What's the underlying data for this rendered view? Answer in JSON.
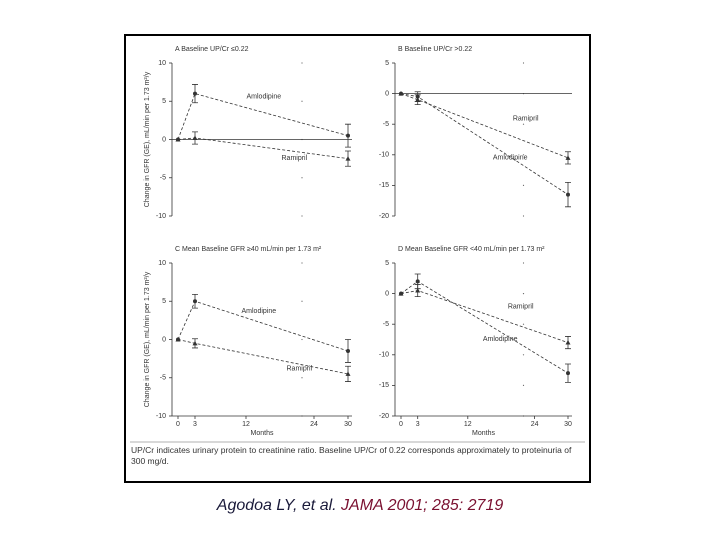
{
  "chart_data": [
    {
      "type": "line",
      "title": "A  Baseline UP/Cr ≤0.22",
      "ylabel": "Change in GFR (GE), mL/min per 1.73 m²/y",
      "x": [
        0,
        3,
        30
      ],
      "xlim": [
        0,
        30
      ],
      "ylim": [
        -10,
        10
      ],
      "yticks": [
        10,
        5,
        0,
        -5,
        -10
      ],
      "zero_line": true,
      "series": [
        {
          "name": "Amlodipine",
          "color": "#333333",
          "marker": "circle",
          "values": [
            0,
            6,
            0.5
          ],
          "errors": [
            0,
            1.2,
            1.5
          ]
        },
        {
          "name": "Ramipril",
          "color": "#333333",
          "marker": "triangle",
          "values": [
            0,
            0.2,
            -2.5
          ],
          "errors": [
            0,
            0.8,
            1
          ]
        }
      ]
    },
    {
      "type": "line",
      "title": "B  Baseline UP/Cr >0.22",
      "x": [
        0,
        3,
        30
      ],
      "xlim": [
        0,
        30
      ],
      "ylim": [
        -20,
        5
      ],
      "yticks": [
        5,
        0,
        -5,
        -10,
        -15,
        -20
      ],
      "zero_line": true,
      "series": [
        {
          "name": "Amlodipine",
          "color": "#333333",
          "marker": "circle",
          "values": [
            0,
            -0.5,
            -16.5
          ],
          "errors": [
            0,
            0.8,
            2
          ]
        },
        {
          "name": "Ramipril",
          "color": "#333333",
          "marker": "triangle",
          "values": [
            0,
            -1,
            -10.5
          ],
          "errors": [
            0,
            0.8,
            1
          ]
        }
      ]
    },
    {
      "type": "line",
      "title": "C  Mean Baseline GFR ≥40 mL/min per 1.73 m²",
      "ylabel": "Change in GFR (GE), mL/min per 1.73 m²/y",
      "xlabel": "Months",
      "x": [
        0,
        3,
        30
      ],
      "xlim": [
        0,
        30
      ],
      "xticks": [
        0,
        3,
        12,
        24,
        30
      ],
      "ylim": [
        -10,
        10
      ],
      "yticks": [
        10,
        5,
        0,
        -5,
        -10
      ],
      "zero_line": false,
      "series": [
        {
          "name": "Amlodipine",
          "color": "#333333",
          "marker": "circle",
          "values": [
            0,
            5,
            -1.5
          ],
          "errors": [
            0,
            0.9,
            1.5
          ]
        },
        {
          "name": "Ramipril",
          "color": "#333333",
          "marker": "triangle",
          "values": [
            0,
            -0.5,
            -4.5
          ],
          "errors": [
            0,
            0.6,
            1
          ]
        }
      ]
    },
    {
      "type": "line",
      "title": "D  Mean Baseline GFR <40 mL/min per 1.73 m²",
      "xlabel": "Months",
      "x": [
        0,
        3,
        30
      ],
      "xlim": [
        0,
        30
      ],
      "xticks": [
        0,
        3,
        12,
        24,
        30
      ],
      "ylim": [
        -20,
        5
      ],
      "yticks": [
        5,
        0,
        -5,
        -10,
        -15,
        -20
      ],
      "zero_line": false,
      "series": [
        {
          "name": "Amlodipine",
          "color": "#333333",
          "marker": "circle",
          "values": [
            0,
            2,
            -13
          ],
          "errors": [
            0,
            1.2,
            1.5
          ]
        },
        {
          "name": "Ramipril",
          "color": "#333333",
          "marker": "triangle",
          "values": [
            0,
            0.5,
            -8
          ],
          "errors": [
            0,
            1,
            1
          ]
        }
      ]
    }
  ],
  "caption": "UP/Cr indicates urinary protein to creatinine ratio. Baseline UP/Cr of 0.22 corresponds approximately to proteinuria of 300 mg/d.",
  "citation": {
    "authors": "Agodoa LY, et al.",
    "source": "JAMA 2001; 285: 2719"
  }
}
